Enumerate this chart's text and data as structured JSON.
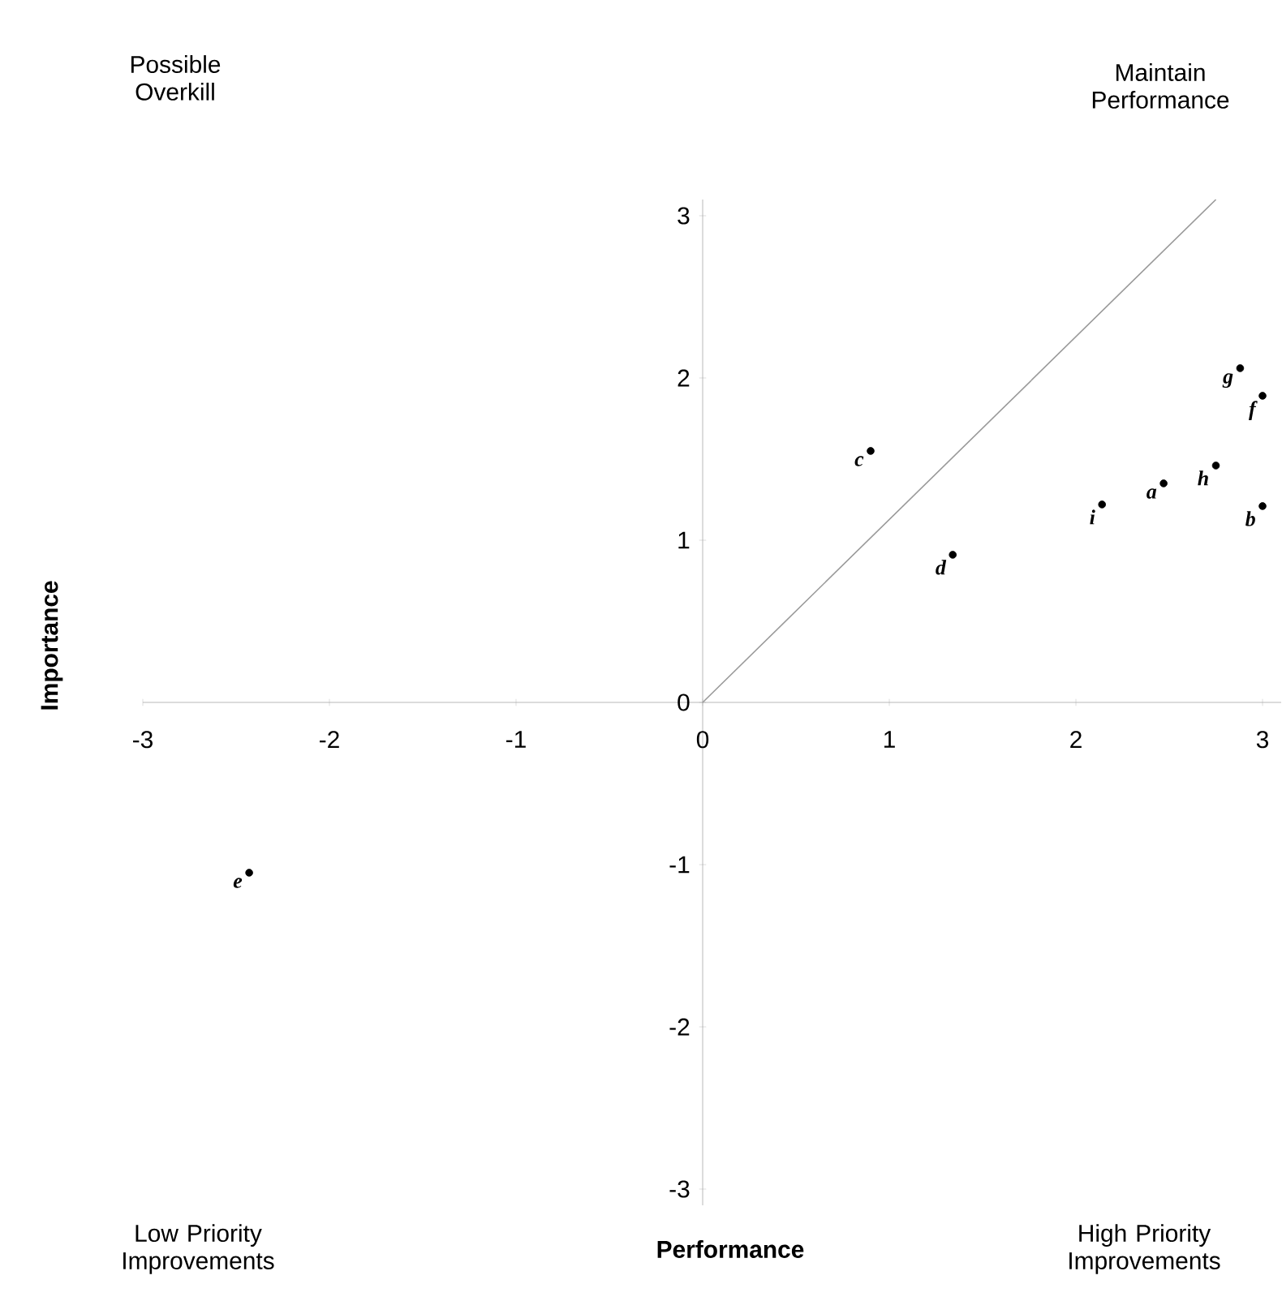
{
  "chart_data": {
    "type": "scatter",
    "xlabel": "Performance",
    "ylabel": "Importance",
    "xlim": [
      -3,
      3.1
    ],
    "ylim": [
      -3.1,
      3.1
    ],
    "xticks": [
      -3,
      -2,
      -1,
      0,
      1,
      2,
      3
    ],
    "yticks": [
      -3,
      -2,
      -1,
      0,
      1,
      2,
      3
    ],
    "series": [
      {
        "marker": "circle",
        "color": "#000000",
        "x": [
          2.47,
          3.0,
          0.9,
          1.34,
          -2.43,
          3.0,
          2.88,
          2.75,
          2.14
        ],
        "values": [
          1.35,
          1.21,
          1.55,
          0.91,
          -1.05,
          1.89,
          2.06,
          1.46,
          1.22
        ]
      },
      {
        "type": "line",
        "marker": "none",
        "color": "#999999",
        "x": [
          0,
          2.75
        ],
        "values": [
          0,
          3.1
        ]
      }
    ],
    "annotations": [
      "Possible Overkill",
      "Maintain Performance",
      "Low Priority Improvements",
      "High Priority Improvements",
      {
        "text": "a",
        "x": 2.47,
        "y": 1.35
      },
      {
        "text": "b",
        "x": 3.0,
        "y": 1.21
      },
      {
        "text": "c",
        "x": 0.9,
        "y": 1.55
      },
      {
        "text": "d",
        "x": 1.34,
        "y": 0.91
      },
      {
        "text": "e",
        "x": -2.43,
        "y": -1.05
      },
      {
        "text": "f",
        "x": 3.0,
        "y": 1.89
      },
      {
        "text": "g",
        "x": 2.88,
        "y": 2.06
      },
      {
        "text": "h",
        "x": 2.75,
        "y": 1.46
      },
      {
        "text": "i",
        "x": 2.14,
        "y": 1.22
      }
    ]
  }
}
